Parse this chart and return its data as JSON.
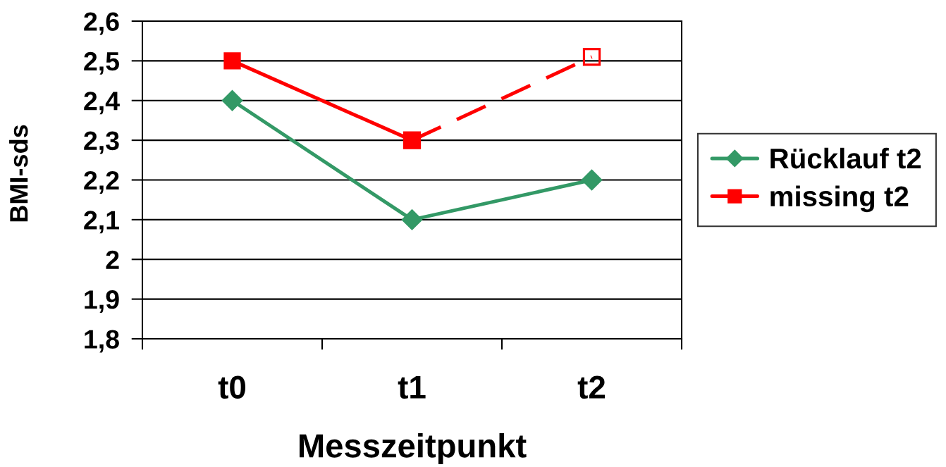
{
  "chart_data": {
    "type": "line",
    "xlabel": "Messzeitpunkt",
    "ylabel": "BMI-sds",
    "categories": [
      "t0",
      "t1",
      "t2"
    ],
    "series": [
      {
        "name": "Rücklauf t2",
        "color": "#339966",
        "values": [
          2.4,
          2.1,
          2.2
        ],
        "marker": "diamond"
      },
      {
        "name": "missing t2",
        "color": "#ff0000",
        "values": [
          2.5,
          2.3,
          null
        ],
        "marker": "square"
      },
      {
        "color": "#ff0000",
        "values": [
          null,
          2.3,
          2.51
        ],
        "marker": "square",
        "line_style": "dashed"
      }
    ],
    "ylim": [
      1.8,
      2.6
    ],
    "yticks": [
      {
        "value": 1.8,
        "label": "1,8"
      },
      {
        "value": 1.9,
        "label": "1,9"
      },
      {
        "value": 2,
        "label": "2"
      },
      {
        "value": 2.1,
        "label": "2,1"
      },
      {
        "value": 2.2,
        "label": "2,2"
      },
      {
        "value": 2.3,
        "label": "2,3"
      },
      {
        "value": 2.4,
        "label": "2,4"
      },
      {
        "value": 2.5,
        "label": "2,5"
      },
      {
        "value": 2.6,
        "label": "2,6"
      }
    ],
    "grid": "y",
    "legend": "right",
    "line_style": "solid"
  }
}
